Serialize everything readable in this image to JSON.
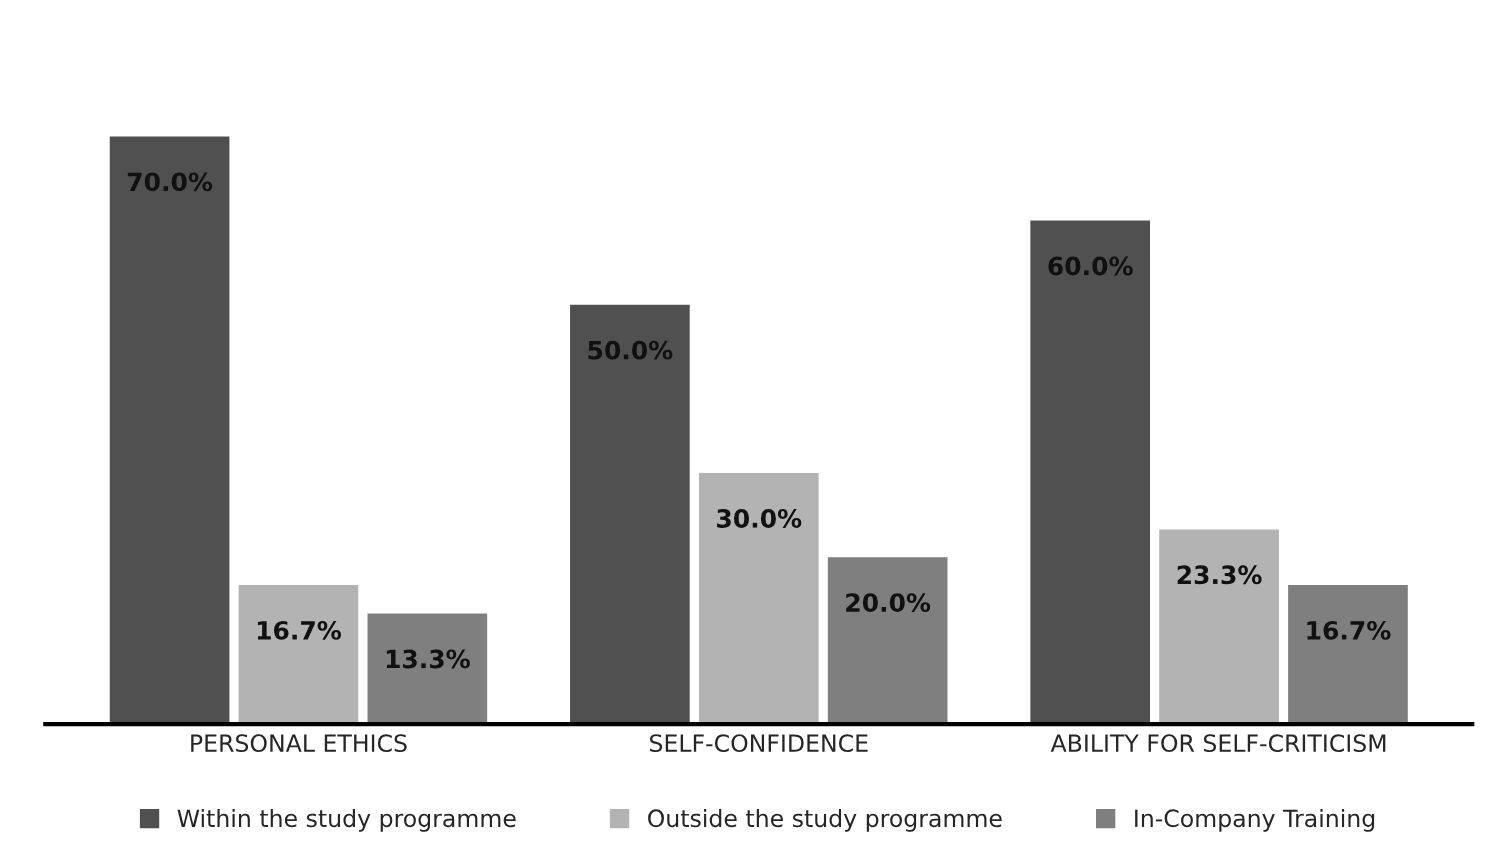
{
  "chart_data": {
    "type": "bar",
    "categories": [
      "PERSONAL ETHICS",
      "SELF-CONFIDENCE",
      "ABILITY FOR SELF-CRITICISM"
    ],
    "series": [
      {
        "name": "Within the study programme",
        "color": "#505050",
        "values": [
          70.0,
          50.0,
          60.0
        ],
        "value_labels": [
          "70.0%",
          "50.0%",
          "60.0%"
        ]
      },
      {
        "name": "Outside the study programme",
        "color": "#b3b3b3",
        "values": [
          16.7,
          30.0,
          23.3
        ],
        "value_labels": [
          "16.7%",
          "30.0%",
          "23.3%"
        ]
      },
      {
        "name": "In-Company Training",
        "color": "#7f7f7f",
        "values": [
          13.3,
          20.0,
          16.7
        ],
        "value_labels": [
          "13.3%",
          "20.0%",
          "16.7%"
        ]
      }
    ],
    "legend": "bottom",
    "grid": false,
    "tick_labels": "x"
  }
}
